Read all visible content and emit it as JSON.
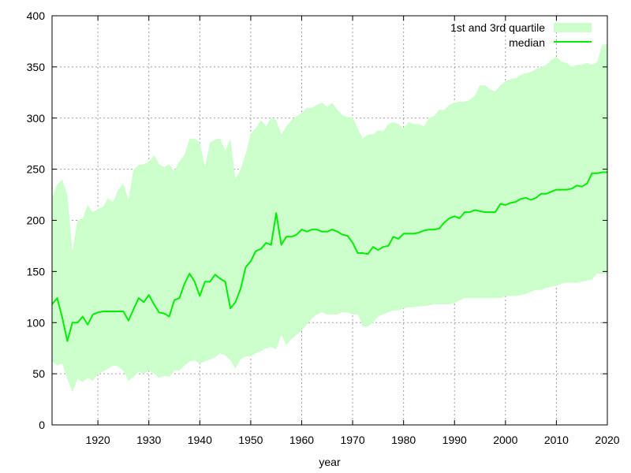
{
  "chart_data": {
    "type": "area",
    "title": "",
    "xlabel": "year",
    "ylabel": "",
    "xlim": [
      1911,
      2020
    ],
    "ylim": [
      0,
      400
    ],
    "x_ticks": [
      1920,
      1930,
      1940,
      1950,
      1960,
      1970,
      1980,
      1990,
      2000,
      2010,
      2020
    ],
    "y_ticks": [
      0,
      50,
      100,
      150,
      200,
      250,
      300,
      350,
      400
    ],
    "grid": true,
    "legend": "top-right",
    "x": [
      1911,
      1912,
      1913,
      1914,
      1915,
      1916,
      1917,
      1918,
      1919,
      1920,
      1921,
      1922,
      1923,
      1924,
      1925,
      1926,
      1927,
      1928,
      1929,
      1930,
      1931,
      1932,
      1933,
      1934,
      1935,
      1936,
      1937,
      1938,
      1939,
      1940,
      1941,
      1942,
      1943,
      1944,
      1945,
      1946,
      1947,
      1948,
      1949,
      1950,
      1951,
      1952,
      1953,
      1954,
      1955,
      1956,
      1957,
      1958,
      1959,
      1960,
      1961,
      1962,
      1963,
      1964,
      1965,
      1966,
      1967,
      1968,
      1969,
      1970,
      1971,
      1972,
      1973,
      1974,
      1975,
      1976,
      1977,
      1978,
      1979,
      1980,
      1981,
      1982,
      1983,
      1984,
      1985,
      1986,
      1987,
      1988,
      1989,
      1990,
      1991,
      1992,
      1993,
      1994,
      1995,
      1996,
      1997,
      1998,
      1999,
      2000,
      2001,
      2002,
      2003,
      2004,
      2005,
      2006,
      2007,
      2008,
      2009,
      2010,
      2011,
      2012,
      2013,
      2014,
      2015,
      2016,
      2017,
      2018,
      2019,
      2020
    ],
    "series": [
      {
        "name": "1st and 3rd quartile",
        "kind": "band",
        "lower": [
          62,
          58,
          60,
          45,
          32,
          45,
          42,
          46,
          43,
          50,
          52,
          55,
          58,
          57,
          53,
          43,
          47,
          52,
          50,
          53,
          50,
          46,
          48,
          47,
          53,
          53,
          58,
          62,
          63,
          60,
          62,
          64,
          66,
          70,
          68,
          63,
          55,
          64,
          67,
          67,
          70,
          72,
          75,
          76,
          74,
          88,
          78,
          84,
          88,
          92,
          98,
          104,
          108,
          110,
          108,
          108,
          108,
          110,
          110,
          108,
          108,
          96,
          96,
          100,
          106,
          108,
          110,
          112,
          112,
          114,
          115,
          115,
          116,
          116,
          117,
          118,
          118,
          118,
          118,
          119,
          122,
          124,
          124,
          124,
          124,
          124,
          124,
          124,
          124,
          126,
          126,
          126,
          127,
          128,
          130,
          132,
          132,
          134,
          135,
          136,
          138,
          139,
          139,
          139,
          140,
          141,
          142,
          148,
          148,
          148
        ],
        "upper": [
          222,
          235,
          240,
          225,
          170,
          200,
          202,
          215,
          208,
          211,
          213,
          222,
          218,
          230,
          236,
          220,
          250,
          254,
          255,
          257,
          264,
          255,
          252,
          255,
          248,
          258,
          264,
          280,
          280,
          276,
          252,
          276,
          279,
          280,
          268,
          280,
          240,
          250,
          265,
          285,
          290,
          298,
          292,
          300,
          298,
          284,
          292,
          298,
          302,
          305,
          310,
          310,
          313,
          315,
          311,
          315,
          308,
          303,
          301,
          301,
          290,
          280,
          284,
          284,
          288,
          287,
          294,
          296,
          294,
          290,
          296,
          294,
          294,
          292,
          300,
          302,
          308,
          308,
          313,
          315,
          316,
          316,
          318,
          322,
          332,
          332,
          328,
          326,
          332,
          336,
          338,
          339,
          342,
          344,
          345,
          348,
          350,
          352,
          357,
          360,
          355,
          354,
          350,
          352,
          352,
          354,
          352,
          355,
          372,
          372
        ]
      },
      {
        "name": "median",
        "kind": "line",
        "values": [
          118,
          124,
          105,
          82,
          100,
          100,
          106,
          98,
          108,
          110,
          111,
          111,
          111,
          111,
          111,
          102,
          113,
          124,
          120,
          127,
          118,
          110,
          109,
          106,
          122,
          124,
          138,
          148,
          140,
          126,
          140,
          140,
          147,
          143,
          140,
          114,
          120,
          133,
          154,
          160,
          170,
          172,
          178,
          176,
          207,
          176,
          184,
          184,
          186,
          191,
          189,
          191,
          191,
          189,
          189,
          191,
          189,
          186,
          185,
          178,
          168,
          168,
          167,
          174,
          171,
          174,
          175,
          184,
          182,
          187,
          187,
          187,
          188,
          190,
          191,
          191,
          192,
          198,
          202,
          204,
          202,
          208,
          208,
          210,
          209,
          208,
          208,
          208,
          216,
          215,
          217,
          218,
          221,
          222,
          220,
          222,
          226,
          226,
          228,
          230,
          230,
          230,
          231,
          234,
          233,
          236,
          246,
          246,
          247,
          247
        ]
      }
    ],
    "colors": {
      "band": "#ccffcc",
      "line": "#00ee00",
      "grid": "#a0a0a0",
      "axis": "#000000"
    }
  }
}
